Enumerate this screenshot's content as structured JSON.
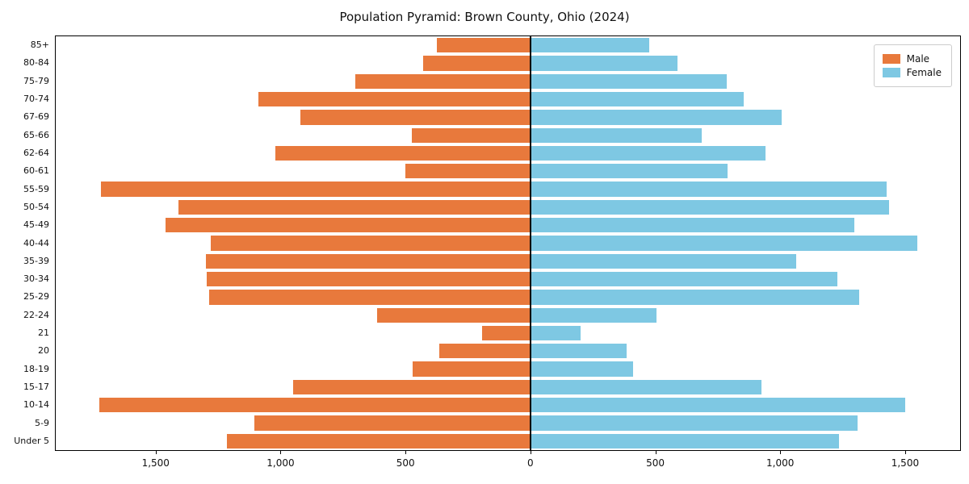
{
  "chart_data": {
    "type": "bar",
    "variant": "population-pyramid-horizontal",
    "title": "Population Pyramid: Brown County, Ohio (2024)",
    "xlabel": "",
    "ylabel": "",
    "grid": false,
    "legend_position": "upper right",
    "xlim": [
      -1900,
      1720
    ],
    "categories": [
      "85+",
      "80-84",
      "75-79",
      "70-74",
      "67-69",
      "65-66",
      "62-64",
      "60-61",
      "55-59",
      "50-54",
      "45-49",
      "40-44",
      "35-39",
      "30-34",
      "25-29",
      "22-24",
      "21",
      "20",
      "18-19",
      "15-17",
      "10-14",
      "5-9",
      "Under 5"
    ],
    "series": [
      {
        "name": "Male",
        "color": "#e8793c",
        "direction": "left",
        "values": [
          375,
          430,
          700,
          1090,
          920,
          475,
          1020,
          500,
          1720,
          1410,
          1460,
          1280,
          1300,
          1295,
          1285,
          615,
          195,
          365,
          470,
          950,
          1725,
          1105,
          1215
        ]
      },
      {
        "name": "Female",
        "color": "#7ec8e3",
        "direction": "right",
        "values": [
          475,
          590,
          785,
          855,
          1005,
          685,
          940,
          790,
          1425,
          1435,
          1295,
          1550,
          1065,
          1230,
          1315,
          505,
          200,
          385,
          410,
          925,
          1500,
          1310,
          1235
        ]
      }
    ],
    "x_ticks": {
      "values": [
        -1500,
        -1000,
        -500,
        0,
        500,
        1000,
        1500
      ],
      "labels": [
        "1,500",
        "1,000",
        "500",
        "0",
        "500",
        "1,000",
        "1,500"
      ]
    }
  }
}
